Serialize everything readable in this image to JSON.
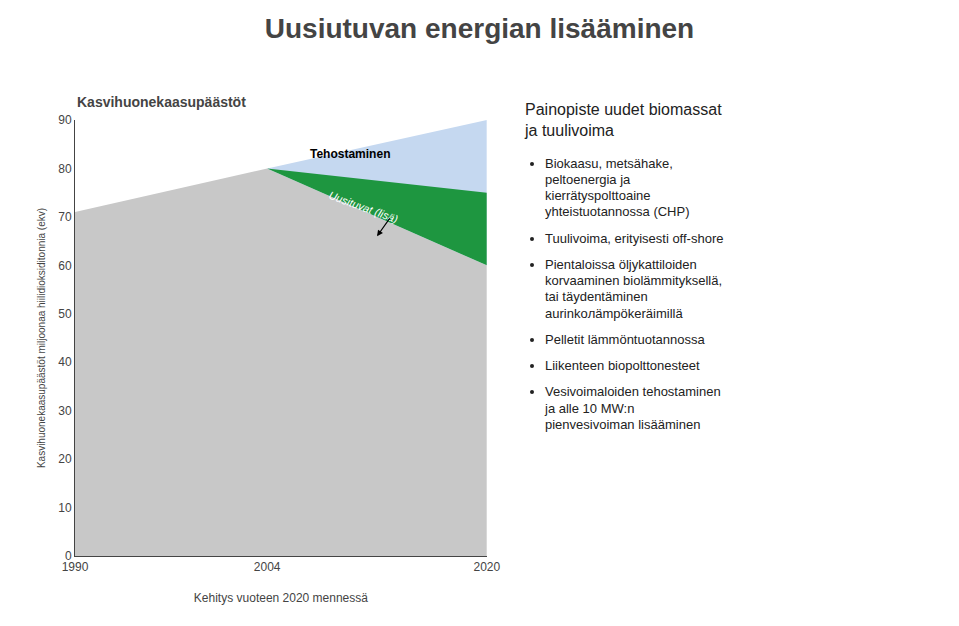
{
  "chart_data": {
    "type": "area",
    "title": "Uusiutuvan energian lisääminen",
    "subtitle": "Kasvihuonekaasupäästöt",
    "xlabel": "Kehitys vuoteen 2020 mennessä",
    "ylabel": "Kasvihuonekaasupäästöt miljoonaa hiilidioksiditonnia (ekv)",
    "xlim": [
      1990,
      2020
    ],
    "ylim": [
      0,
      90
    ],
    "xticks": [
      1990,
      2004,
      2020
    ],
    "yticks": [
      0,
      10,
      20,
      30,
      40,
      50,
      60,
      70,
      80,
      90
    ],
    "grid": false,
    "series": [
      {
        "color": "#c8c8c8",
        "x": [
          1990,
          2004,
          2020,
          2020,
          1990
        ],
        "values": [
          71,
          80,
          60,
          0,
          0
        ]
      },
      {
        "color": "#c5d8f0",
        "x": [
          2004,
          2020,
          2020
        ],
        "values": [
          80,
          90,
          60
        ]
      },
      {
        "color": "#1e9640",
        "x": [
          2004,
          2020,
          2020
        ],
        "values": [
          80,
          75,
          60
        ]
      }
    ],
    "annotations": [
      {
        "text": "Tehostaminen",
        "x": 2010,
        "y": 83
      },
      {
        "text": "Uusituvat (lisä)",
        "x": 2011,
        "y": 72,
        "color": "#ffffff"
      }
    ],
    "arrows": [
      {
        "from": [
          2013,
          70
        ],
        "to": [
          2012,
          66
        ]
      }
    ]
  },
  "notes": {
    "title": "Painopiste uudet biomassat\nja tuulivoima",
    "items": [
      "Biokaasu, metsähake,\npeltoenergia ja\nkierrätyspolttoaine\nyhteistuotannossa (CHP)",
      "Tuulivoima, erityisesti off-shore",
      "Pientaloissa öljykattiloiden\nkorvaaminen biolämmityksellä,\ntai täydentäminen\naurinkoлämpökeräimillä",
      "Pelletit lämmöntuotannossa",
      "Liikenteen biopolttonesteet",
      "Vesivoimaloiden tehostaminen\nja alle 10 MW:n\npienvesivoiman lisääminen"
    ]
  }
}
